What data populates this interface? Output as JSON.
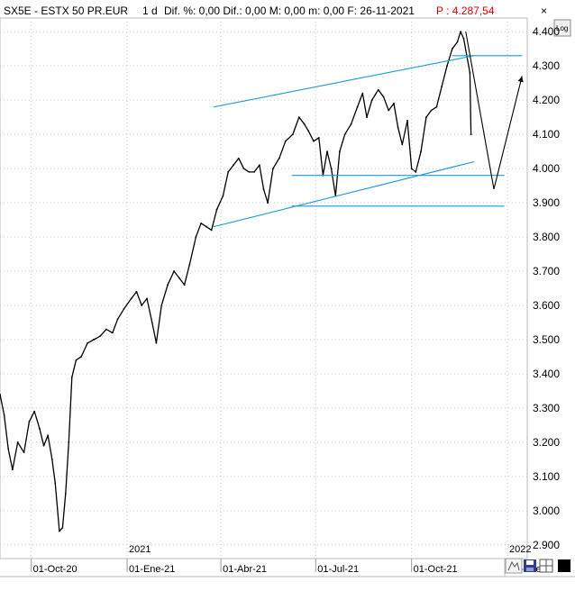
{
  "header": {
    "symbol": "SX5E - ESTX 50 PR.EUR",
    "interval": "1 d",
    "stats": "Dif. %: 0,00  Dif.: 0,00  M: 0,00  m: 0,00  F: 26-11-2021",
    "price": "P : 4.287,54",
    "price_color": "#e00000"
  },
  "toolbar": {
    "close_glyph": "×",
    "log_label": "Log"
  },
  "colors": {
    "price": "#000000",
    "trendline": "#1a9ad6",
    "projection": "#000000",
    "grid": "#c8c8c8"
  },
  "chart_data": {
    "type": "line",
    "title": "SX5E - ESTX 50 PR.EUR",
    "yticks": [
      "4.400",
      "4.300",
      "4.200",
      "4.100",
      "4.000",
      "3.900",
      "3.800",
      "3.700",
      "3.600",
      "3.500",
      "3.400",
      "3.300",
      "3.200",
      "3.100",
      "3.000",
      "2.900"
    ],
    "ytick_values": [
      4400,
      4300,
      4200,
      4100,
      4000,
      3900,
      3800,
      3700,
      3600,
      3500,
      3400,
      3300,
      3200,
      3100,
      3000,
      2900
    ],
    "xticks": [
      "01-Oct-20",
      "01-Ene-21",
      "01-Abr-21",
      "01-Jul-21",
      "01-Oct-21",
      "01-Ene-"
    ],
    "xtick_dates": [
      "2020-10-01",
      "2021-01-01",
      "2021-04-01",
      "2021-07-01",
      "2021-10-01",
      "2022-01-01"
    ],
    "year_labels": [
      "2021",
      "2022"
    ],
    "year_dates": [
      "2021-01-01",
      "2022-01-01"
    ],
    "x_range": [
      "2020-09-01",
      "2022-01-20"
    ],
    "y_range": [
      2860,
      4440
    ],
    "grid": true,
    "series": [
      {
        "points": [
          [
            "2020-09-01",
            3340
          ],
          [
            "2020-09-05",
            3280
          ],
          [
            "2020-09-09",
            3180
          ],
          [
            "2020-09-13",
            3120
          ],
          [
            "2020-09-18",
            3200
          ],
          [
            "2020-09-24",
            3170
          ],
          [
            "2020-09-29",
            3260
          ],
          [
            "2020-10-04",
            3290
          ],
          [
            "2020-10-09",
            3240
          ],
          [
            "2020-10-13",
            3190
          ],
          [
            "2020-10-17",
            3220
          ],
          [
            "2020-10-21",
            3150
          ],
          [
            "2020-10-24",
            3080
          ],
          [
            "2020-10-28",
            2940
          ],
          [
            "2020-10-31",
            2950
          ],
          [
            "2020-11-03",
            3050
          ],
          [
            "2020-11-06",
            3200
          ],
          [
            "2020-11-09",
            3390
          ],
          [
            "2020-11-13",
            3440
          ],
          [
            "2020-11-18",
            3450
          ],
          [
            "2020-11-24",
            3490
          ],
          [
            "2020-11-30",
            3500
          ],
          [
            "2020-12-06",
            3510
          ],
          [
            "2020-12-12",
            3530
          ],
          [
            "2020-12-18",
            3520
          ],
          [
            "2020-12-23",
            3560
          ],
          [
            "2020-12-29",
            3590
          ],
          [
            "2021-01-05",
            3620
          ],
          [
            "2021-01-10",
            3640
          ],
          [
            "2021-01-15",
            3600
          ],
          [
            "2021-01-20",
            3620
          ],
          [
            "2021-01-25",
            3550
          ],
          [
            "2021-01-29",
            3490
          ],
          [
            "2021-02-03",
            3600
          ],
          [
            "2021-02-09",
            3660
          ],
          [
            "2021-02-15",
            3700
          ],
          [
            "2021-02-20",
            3680
          ],
          [
            "2021-02-25",
            3660
          ],
          [
            "2021-03-02",
            3720
          ],
          [
            "2021-03-08",
            3800
          ],
          [
            "2021-03-13",
            3840
          ],
          [
            "2021-03-18",
            3830
          ],
          [
            "2021-03-23",
            3820
          ],
          [
            "2021-03-28",
            3880
          ],
          [
            "2021-04-03",
            3920
          ],
          [
            "2021-04-08",
            3990
          ],
          [
            "2021-04-13",
            4010
          ],
          [
            "2021-04-18",
            4030
          ],
          [
            "2021-04-23",
            4000
          ],
          [
            "2021-04-28",
            3990
          ],
          [
            "2021-05-03",
            3990
          ],
          [
            "2021-05-08",
            4010
          ],
          [
            "2021-05-12",
            3940
          ],
          [
            "2021-05-16",
            3900
          ],
          [
            "2021-05-21",
            4000
          ],
          [
            "2021-05-27",
            4030
          ],
          [
            "2021-06-02",
            4080
          ],
          [
            "2021-06-09",
            4100
          ],
          [
            "2021-06-15",
            4150
          ],
          [
            "2021-06-20",
            4130
          ],
          [
            "2021-06-24",
            4110
          ],
          [
            "2021-06-29",
            4080
          ],
          [
            "2021-07-04",
            4090
          ],
          [
            "2021-07-08",
            3980
          ],
          [
            "2021-07-12",
            4050
          ],
          [
            "2021-07-16",
            4000
          ],
          [
            "2021-07-20",
            3920
          ],
          [
            "2021-07-24",
            4050
          ],
          [
            "2021-07-29",
            4100
          ],
          [
            "2021-08-04",
            4130
          ],
          [
            "2021-08-10",
            4180
          ],
          [
            "2021-08-15",
            4220
          ],
          [
            "2021-08-19",
            4150
          ],
          [
            "2021-08-24",
            4200
          ],
          [
            "2021-08-30",
            4230
          ],
          [
            "2021-09-04",
            4210
          ],
          [
            "2021-09-09",
            4170
          ],
          [
            "2021-09-14",
            4190
          ],
          [
            "2021-09-18",
            4120
          ],
          [
            "2021-09-22",
            4070
          ],
          [
            "2021-09-27",
            4140
          ],
          [
            "2021-10-01",
            4000
          ],
          [
            "2021-10-05",
            3990
          ],
          [
            "2021-10-10",
            4050
          ],
          [
            "2021-10-15",
            4150
          ],
          [
            "2021-10-20",
            4170
          ],
          [
            "2021-10-25",
            4180
          ],
          [
            "2021-10-30",
            4240
          ],
          [
            "2021-11-04",
            4300
          ],
          [
            "2021-11-09",
            4350
          ],
          [
            "2021-11-14",
            4370
          ],
          [
            "2021-11-17",
            4400
          ],
          [
            "2021-11-20",
            4380
          ],
          [
            "2021-11-23",
            4330
          ],
          [
            "2021-11-26",
            4280
          ],
          [
            "2021-11-27",
            4100
          ]
        ]
      }
    ],
    "annotations": [
      {
        "kind": "trendline",
        "from": [
          "2021-03-25",
          4180
        ],
        "to": [
          "2021-11-30",
          4330
        ]
      },
      {
        "kind": "trendline",
        "from": [
          "2021-03-25",
          3830
        ],
        "to": [
          "2021-11-30",
          4020
        ]
      },
      {
        "kind": "trendline",
        "from": [
          "2021-11-09",
          4330
        ],
        "to": [
          "2022-01-15",
          4330
        ]
      },
      {
        "kind": "trendline",
        "from": [
          "2021-06-08",
          3980
        ],
        "to": [
          "2021-12-29",
          3980
        ]
      },
      {
        "kind": "trendline",
        "from": [
          "2021-06-08",
          3890
        ],
        "to": [
          "2021-12-29",
          3890
        ]
      },
      {
        "kind": "projection",
        "points": [
          [
            "2021-11-22",
            4400
          ],
          [
            "2021-12-19",
            3940
          ],
          [
            "2022-01-15",
            4270
          ]
        ]
      }
    ]
  }
}
